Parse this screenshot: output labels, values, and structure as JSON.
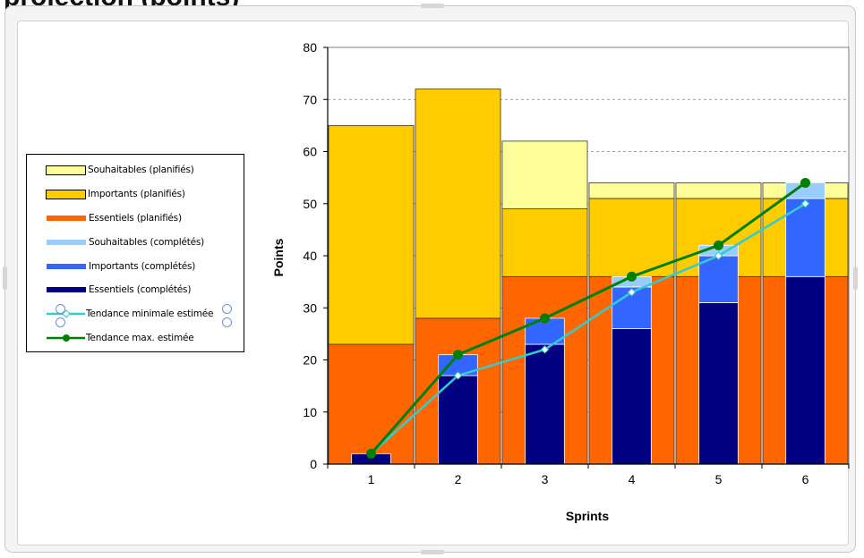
{
  "partial_title": "projection (points)",
  "chart_data": {
    "type": "bar",
    "stacked": true,
    "categories": [
      "1",
      "2",
      "3",
      "4",
      "5",
      "6"
    ],
    "xlabel": "Sprints",
    "ylabel": "Points",
    "ylim": [
      0,
      80
    ],
    "yticks": [
      0,
      10,
      20,
      30,
      40,
      50,
      60,
      70,
      80
    ],
    "grid": "horizontal dashed",
    "legend_position": "left",
    "planned_series": [
      {
        "name": "Essentiels (planifiés)",
        "color": "#ff6600",
        "values": [
          23,
          28,
          36,
          36,
          36,
          36
        ]
      },
      {
        "name": "Importants (planifiés)",
        "color": "#ffcc00",
        "values": [
          42,
          44,
          13,
          15,
          15,
          15
        ]
      },
      {
        "name": "Souhaitables (planifiés)",
        "color": "#ffff99",
        "values": [
          0,
          0,
          13,
          3,
          3,
          3
        ]
      }
    ],
    "completed_series": [
      {
        "name": "Essentiels (complétés)",
        "color": "#000080",
        "values": [
          2,
          17,
          23,
          26,
          31,
          36
        ]
      },
      {
        "name": "Importants (complétés)",
        "color": "#3366ff",
        "values": [
          0,
          4,
          5,
          8,
          9,
          15
        ]
      },
      {
        "name": "Souhaitables (complétés)",
        "color": "#99ccff",
        "values": [
          0,
          0,
          0,
          2,
          2,
          3
        ]
      }
    ],
    "line_series": [
      {
        "name": "Tendance minimale estimée",
        "color": "#33cccc",
        "values": [
          2,
          17,
          22,
          33,
          40,
          50
        ]
      },
      {
        "name": "Tendance max. estimée",
        "color": "#008000",
        "values": [
          2,
          21,
          28,
          36,
          42,
          54
        ]
      }
    ],
    "legend_items": [
      {
        "label": "Souhaitables (planifiés)",
        "kind": "box",
        "color": "#ffff99"
      },
      {
        "label": "Importants (planifiés)",
        "kind": "box",
        "color": "#ffcc00"
      },
      {
        "label": "Essentiels (planifiés)",
        "kind": "bar",
        "color": "#ff6600"
      },
      {
        "label": "Souhaitables (complétés)",
        "kind": "bar",
        "color": "#99ccff"
      },
      {
        "label": "Importants (complétés)",
        "kind": "bar",
        "color": "#3366ff"
      },
      {
        "label": "Essentiels (complétés)",
        "kind": "bar",
        "color": "#000080"
      },
      {
        "label": "Tendance minimale estimée",
        "kind": "line",
        "color": "#33cccc"
      },
      {
        "label": "Tendance max. estimée",
        "kind": "line",
        "color": "#008000"
      }
    ]
  }
}
